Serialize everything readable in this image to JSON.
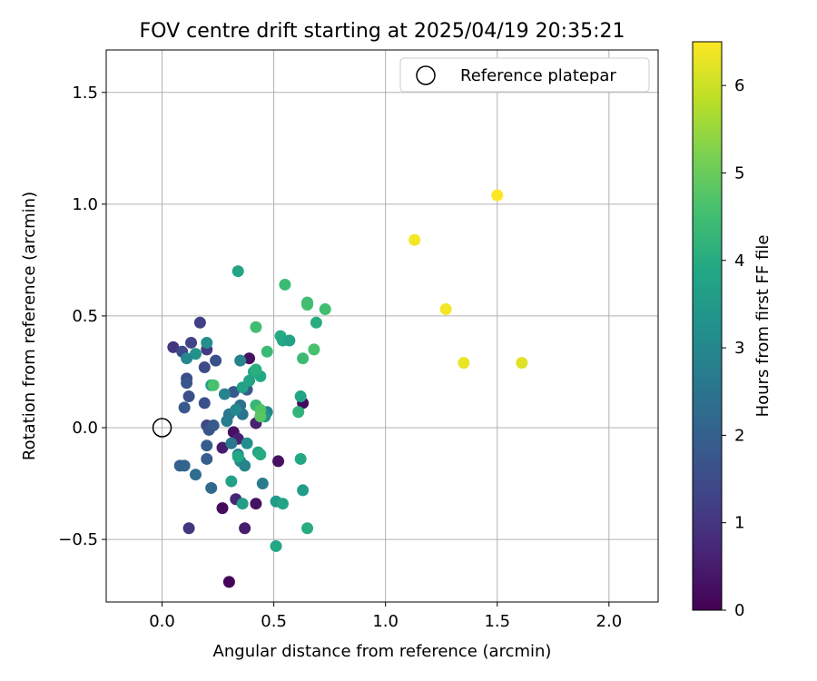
{
  "chart_data": {
    "type": "scatter",
    "title": "FOV centre drift starting at 2025/04/19 20:35:21",
    "xlabel": "Angular distance from reference (arcmin)",
    "ylabel": "Rotation from reference (arcmin)",
    "xlim": [
      -0.25,
      2.22
    ],
    "ylim": [
      -0.78,
      1.69
    ],
    "xticks": [
      0.0,
      0.5,
      1.0,
      1.5,
      2.0
    ],
    "xtick_labels": [
      "0.0",
      "0.5",
      "1.0",
      "1.5",
      "2.0"
    ],
    "yticks": [
      -0.5,
      0.0,
      0.5,
      1.0,
      1.5
    ],
    "ytick_labels": [
      "−0.5",
      "0.0",
      "0.5",
      "1.0",
      "1.5"
    ],
    "grid": true,
    "colormap": "viridis",
    "colorbar": {
      "label": "Hours from first FF file",
      "min": 0,
      "max": 6.5,
      "ticks": [
        0,
        1,
        2,
        3,
        4,
        5,
        6
      ],
      "tick_labels": [
        "0",
        "1",
        "2",
        "3",
        "4",
        "5",
        "6"
      ]
    },
    "legend": {
      "placement": "top-right",
      "entries": [
        {
          "label": "Reference platepar",
          "marker": "open-circle"
        }
      ]
    },
    "reference_point": {
      "x": 0.0,
      "y": 0.0
    },
    "points": [
      {
        "x": 0.3,
        "y": -0.69,
        "t": 0.1
      },
      {
        "x": 0.27,
        "y": -0.36,
        "t": 0.2
      },
      {
        "x": 0.37,
        "y": -0.45,
        "t": 0.5
      },
      {
        "x": 0.42,
        "y": -0.34,
        "t": 0.3
      },
      {
        "x": 0.32,
        "y": -0.02,
        "t": 0.3
      },
      {
        "x": 0.34,
        "y": -0.05,
        "t": 0.6
      },
      {
        "x": 0.27,
        "y": -0.09,
        "t": 0.5
      },
      {
        "x": 0.52,
        "y": -0.15,
        "t": 0.3
      },
      {
        "x": 0.39,
        "y": 0.31,
        "t": 0.3
      },
      {
        "x": 0.63,
        "y": 0.11,
        "t": 0.2
      },
      {
        "x": 0.44,
        "y": 0.05,
        "t": 0.5
      },
      {
        "x": 0.42,
        "y": 0.02,
        "t": 0.6
      },
      {
        "x": 0.12,
        "y": -0.45,
        "t": 1.0
      },
      {
        "x": 0.33,
        "y": -0.32,
        "t": 0.7
      },
      {
        "x": 0.05,
        "y": 0.36,
        "t": 1.0
      },
      {
        "x": 0.17,
        "y": 0.47,
        "t": 1.2
      },
      {
        "x": 0.13,
        "y": 0.38,
        "t": 1.3
      },
      {
        "x": 0.2,
        "y": 0.35,
        "t": 1.1
      },
      {
        "x": 0.09,
        "y": 0.34,
        "t": 1.4
      },
      {
        "x": 0.19,
        "y": 0.27,
        "t": 1.5
      },
      {
        "x": 0.24,
        "y": 0.3,
        "t": 1.6
      },
      {
        "x": 0.11,
        "y": 0.22,
        "t": 1.5
      },
      {
        "x": 0.11,
        "y": 0.2,
        "t": 1.7
      },
      {
        "x": 0.12,
        "y": 0.14,
        "t": 1.6
      },
      {
        "x": 0.1,
        "y": 0.09,
        "t": 1.8
      },
      {
        "x": 0.19,
        "y": 0.11,
        "t": 1.6
      },
      {
        "x": 0.2,
        "y": 0.01,
        "t": 1.4
      },
      {
        "x": 0.21,
        "y": -0.01,
        "t": 1.7
      },
      {
        "x": 0.23,
        "y": 0.01,
        "t": 1.8
      },
      {
        "x": 0.2,
        "y": -0.08,
        "t": 1.9
      },
      {
        "x": 0.2,
        "y": -0.14,
        "t": 1.9
      },
      {
        "x": 0.08,
        "y": -0.17,
        "t": 2.0
      },
      {
        "x": 0.1,
        "y": -0.17,
        "t": 2.1
      },
      {
        "x": 0.15,
        "y": -0.21,
        "t": 2.3
      },
      {
        "x": 0.22,
        "y": -0.27,
        "t": 2.2
      },
      {
        "x": 0.32,
        "y": 0.16,
        "t": 1.8
      },
      {
        "x": 0.38,
        "y": 0.17,
        "t": 1.9
      },
      {
        "x": 0.35,
        "y": 0.1,
        "t": 2.4
      },
      {
        "x": 0.36,
        "y": 0.06,
        "t": 2.5
      },
      {
        "x": 0.3,
        "y": 0.06,
        "t": 2.6
      },
      {
        "x": 0.29,
        "y": 0.03,
        "t": 2.7
      },
      {
        "x": 0.28,
        "y": 0.15,
        "t": 2.9
      },
      {
        "x": 0.33,
        "y": 0.08,
        "t": 3.0
      },
      {
        "x": 0.35,
        "y": 0.3,
        "t": 2.9
      },
      {
        "x": 0.2,
        "y": 0.38,
        "t": 3.2
      },
      {
        "x": 0.15,
        "y": 0.33,
        "t": 3.3
      },
      {
        "x": 0.11,
        "y": 0.31,
        "t": 3.0
      },
      {
        "x": 0.31,
        "y": -0.07,
        "t": 2.6
      },
      {
        "x": 0.34,
        "y": -0.12,
        "t": 2.8
      },
      {
        "x": 0.35,
        "y": -0.15,
        "t": 3.1
      },
      {
        "x": 0.37,
        "y": -0.17,
        "t": 2.9
      },
      {
        "x": 0.38,
        "y": -0.07,
        "t": 3.2
      },
      {
        "x": 0.45,
        "y": -0.25,
        "t": 2.7
      },
      {
        "x": 0.36,
        "y": -0.34,
        "t": 3.6
      },
      {
        "x": 0.31,
        "y": -0.24,
        "t": 3.7
      },
      {
        "x": 0.43,
        "y": -0.11,
        "t": 3.8
      },
      {
        "x": 0.44,
        "y": -0.12,
        "t": 4.0
      },
      {
        "x": 0.34,
        "y": -0.13,
        "t": 3.9
      },
      {
        "x": 0.22,
        "y": 0.19,
        "t": 3.6
      },
      {
        "x": 0.36,
        "y": 0.18,
        "t": 3.7
      },
      {
        "x": 0.39,
        "y": 0.21,
        "t": 3.8
      },
      {
        "x": 0.41,
        "y": 0.25,
        "t": 3.9
      },
      {
        "x": 0.44,
        "y": 0.23,
        "t": 3.9
      },
      {
        "x": 0.42,
        "y": 0.26,
        "t": 4.1
      },
      {
        "x": 0.47,
        "y": 0.07,
        "t": 3.0
      },
      {
        "x": 0.46,
        "y": 0.05,
        "t": 3.4
      },
      {
        "x": 0.42,
        "y": 0.1,
        "t": 4.3
      },
      {
        "x": 0.34,
        "y": 0.7,
        "t": 3.8
      },
      {
        "x": 0.53,
        "y": 0.41,
        "t": 4.0
      },
      {
        "x": 0.54,
        "y": 0.39,
        "t": 3.9
      },
      {
        "x": 0.57,
        "y": 0.39,
        "t": 3.7
      },
      {
        "x": 0.69,
        "y": 0.47,
        "t": 4.0
      },
      {
        "x": 0.61,
        "y": 0.07,
        "t": 4.2
      },
      {
        "x": 0.62,
        "y": 0.14,
        "t": 3.8
      },
      {
        "x": 0.62,
        "y": -0.14,
        "t": 3.9
      },
      {
        "x": 0.63,
        "y": -0.28,
        "t": 3.6
      },
      {
        "x": 0.51,
        "y": -0.33,
        "t": 3.5
      },
      {
        "x": 0.54,
        "y": -0.34,
        "t": 3.8
      },
      {
        "x": 0.65,
        "y": -0.45,
        "t": 4.0
      },
      {
        "x": 0.51,
        "y": -0.53,
        "t": 3.9
      },
      {
        "x": 0.55,
        "y": 0.64,
        "t": 4.4
      },
      {
        "x": 0.42,
        "y": 0.45,
        "t": 4.5
      },
      {
        "x": 0.47,
        "y": 0.34,
        "t": 4.4
      },
      {
        "x": 0.65,
        "y": 0.55,
        "t": 4.6
      },
      {
        "x": 0.65,
        "y": 0.56,
        "t": 4.5
      },
      {
        "x": 0.73,
        "y": 0.53,
        "t": 4.5
      },
      {
        "x": 0.63,
        "y": 0.31,
        "t": 4.4
      },
      {
        "x": 0.68,
        "y": 0.35,
        "t": 4.6
      },
      {
        "x": 0.44,
        "y": 0.08,
        "t": 4.7
      },
      {
        "x": 0.44,
        "y": 0.05,
        "t": 4.8
      },
      {
        "x": 0.23,
        "y": 0.19,
        "t": 4.6
      },
      {
        "x": 1.13,
        "y": 0.84,
        "t": 6.4
      },
      {
        "x": 1.5,
        "y": 1.04,
        "t": 6.5
      },
      {
        "x": 1.27,
        "y": 0.53,
        "t": 6.4
      },
      {
        "x": 1.35,
        "y": 0.29,
        "t": 6.3
      },
      {
        "x": 1.61,
        "y": 0.29,
        "t": 6.2
      }
    ]
  }
}
